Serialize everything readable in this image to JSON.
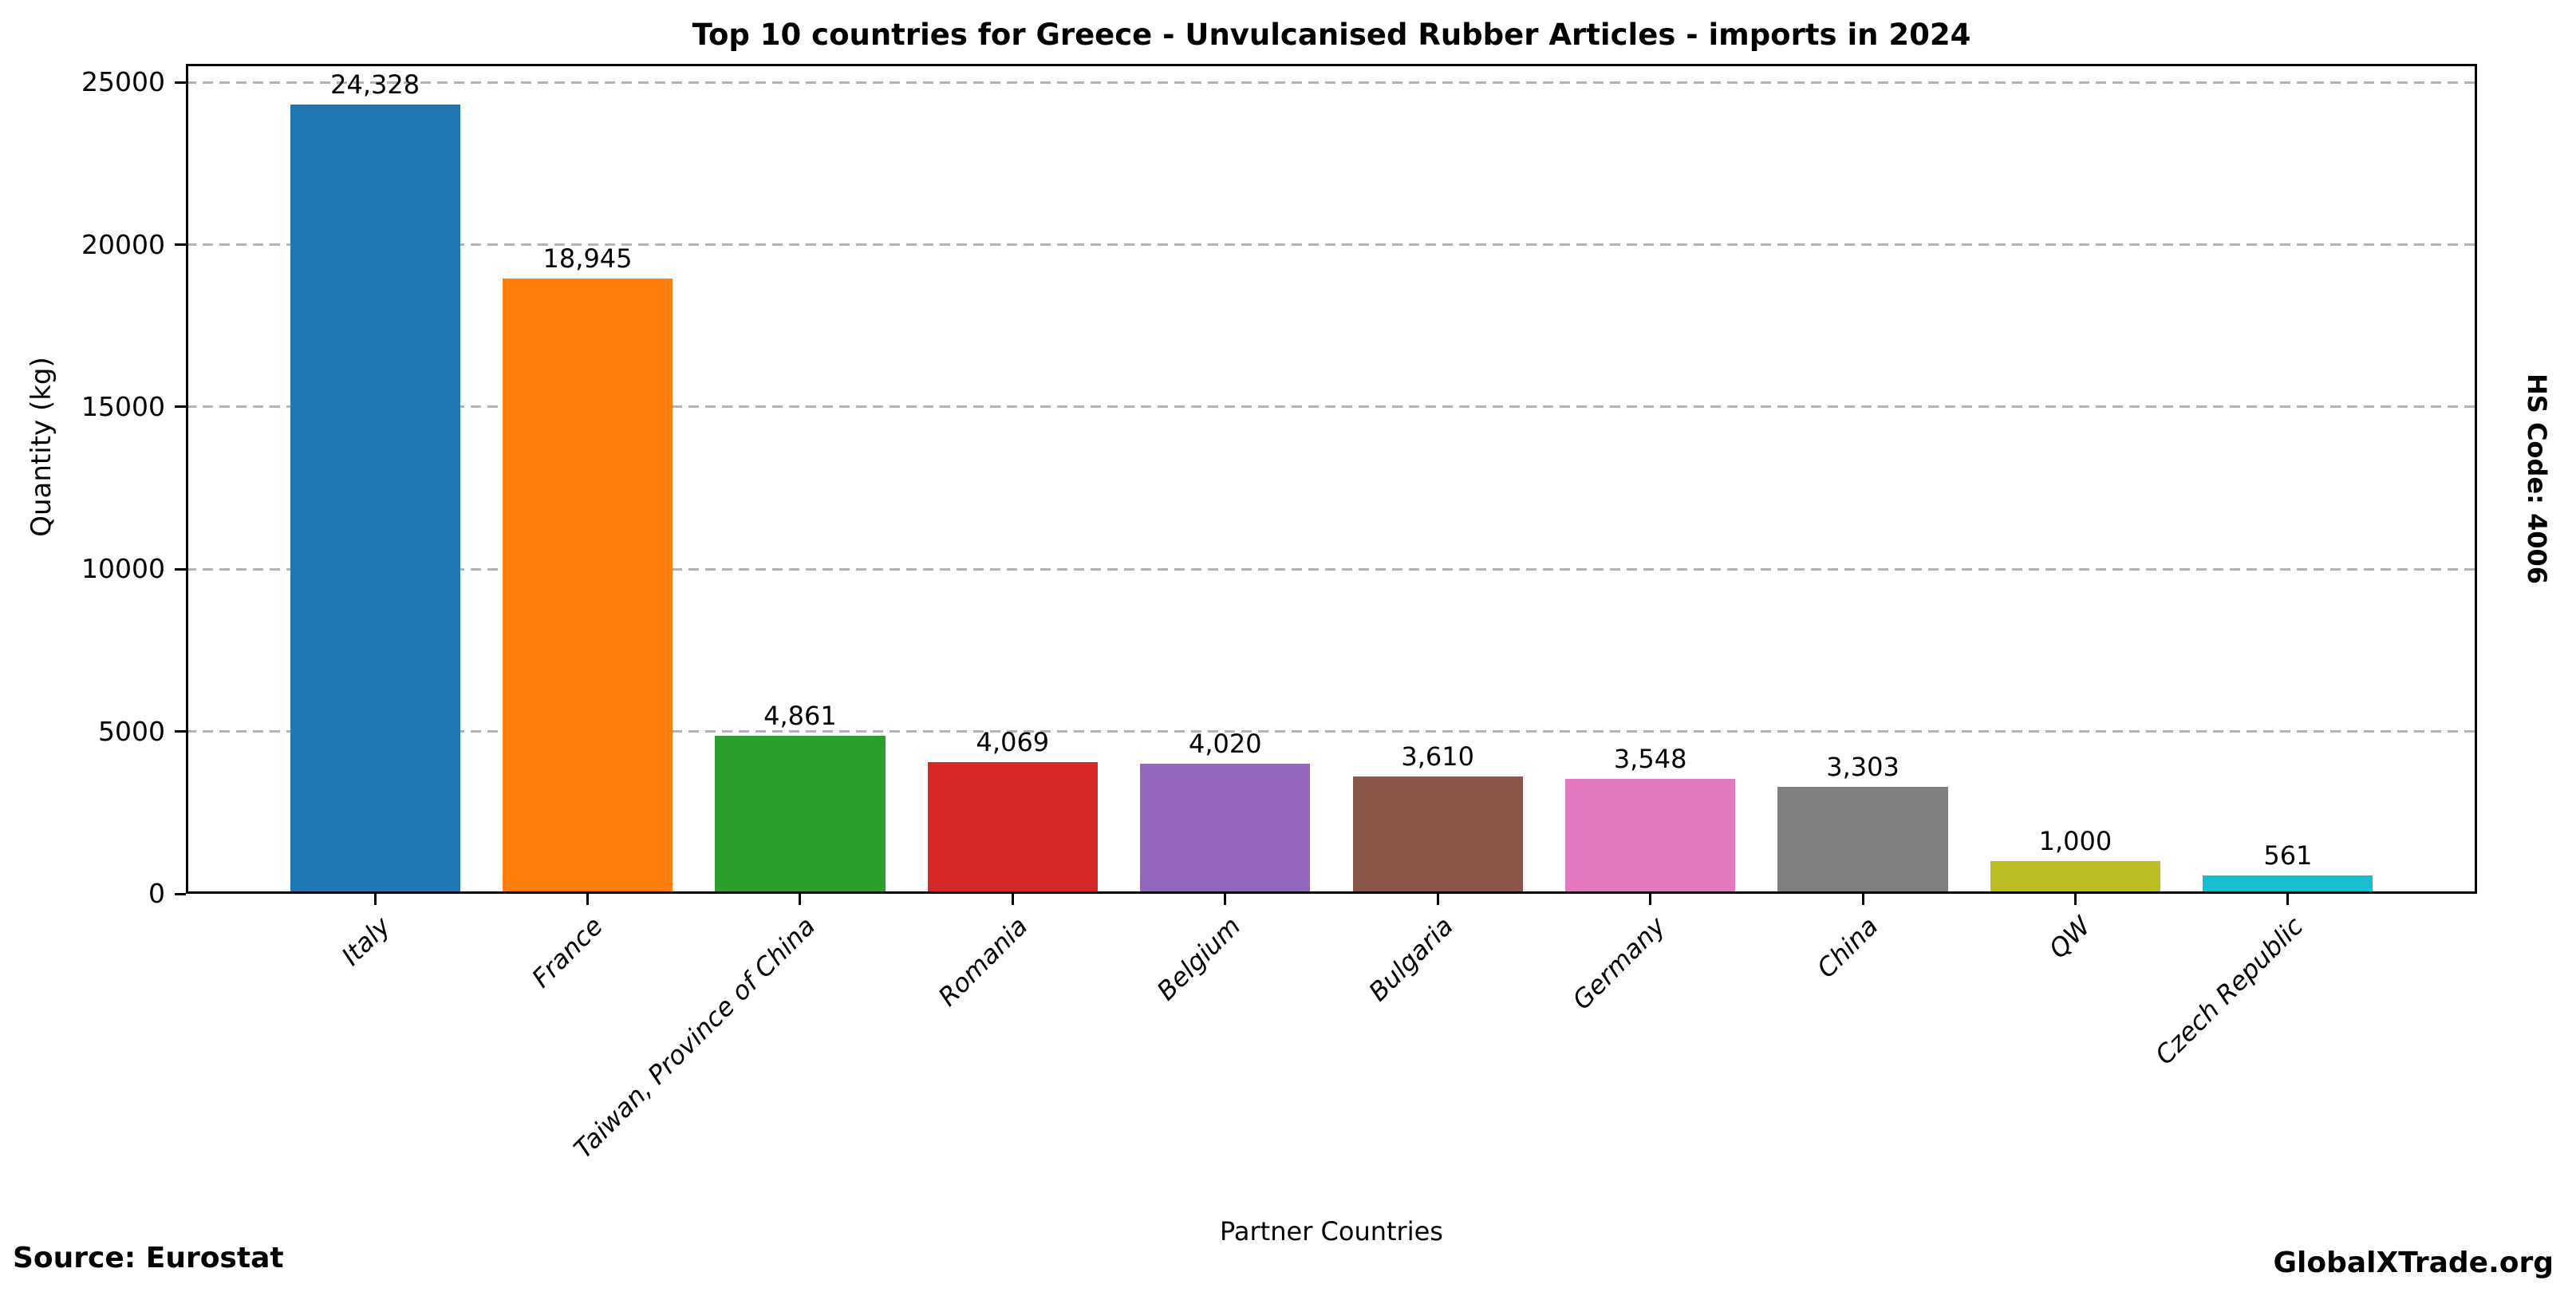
{
  "header": {
    "title": "Top 10 countries for Greece - Unvulcanised Rubber Articles - imports in 2024"
  },
  "side_annotation": {
    "hs_code": "HS Code: 4006"
  },
  "footer": {
    "source": "Source: Eurostat",
    "brand": "GlobalXTrade.org"
  },
  "chart_data": {
    "type": "bar",
    "title": "Top 10 countries for Greece - Unvulcanised Rubber Articles - imports in 2024",
    "xlabel": "Partner Countries",
    "ylabel": "Quantity (kg)",
    "categories": [
      "Italy",
      "France",
      "Taiwan, Province of China",
      "Romania",
      "Belgium",
      "Bulgaria",
      "Germany",
      "China",
      "QW",
      "Czech Republic"
    ],
    "values": [
      24328,
      18945,
      4861,
      4069,
      4020,
      3610,
      3548,
      3303,
      1000,
      561
    ],
    "value_labels": [
      "24,328",
      "18,945",
      "4,861",
      "4,069",
      "4,020",
      "3,610",
      "3,548",
      "3,303",
      "1,000",
      "561"
    ],
    "bar_colors": [
      "#1f77b4",
      "#ff7f0e",
      "#2ca02c",
      "#d62728",
      "#9467bd",
      "#8c564b",
      "#e377c2",
      "#7f7f7f",
      "#bcbd22",
      "#17becf"
    ],
    "yticks": [
      0,
      5000,
      10000,
      15000,
      20000,
      25000
    ],
    "ylim": [
      0,
      25570
    ],
    "grid": {
      "axis": "y",
      "style": "dashed",
      "color": "#b3b3b3"
    },
    "legend": "none",
    "xtick_style": "italic, rotated 45 deg, right-anchored"
  }
}
